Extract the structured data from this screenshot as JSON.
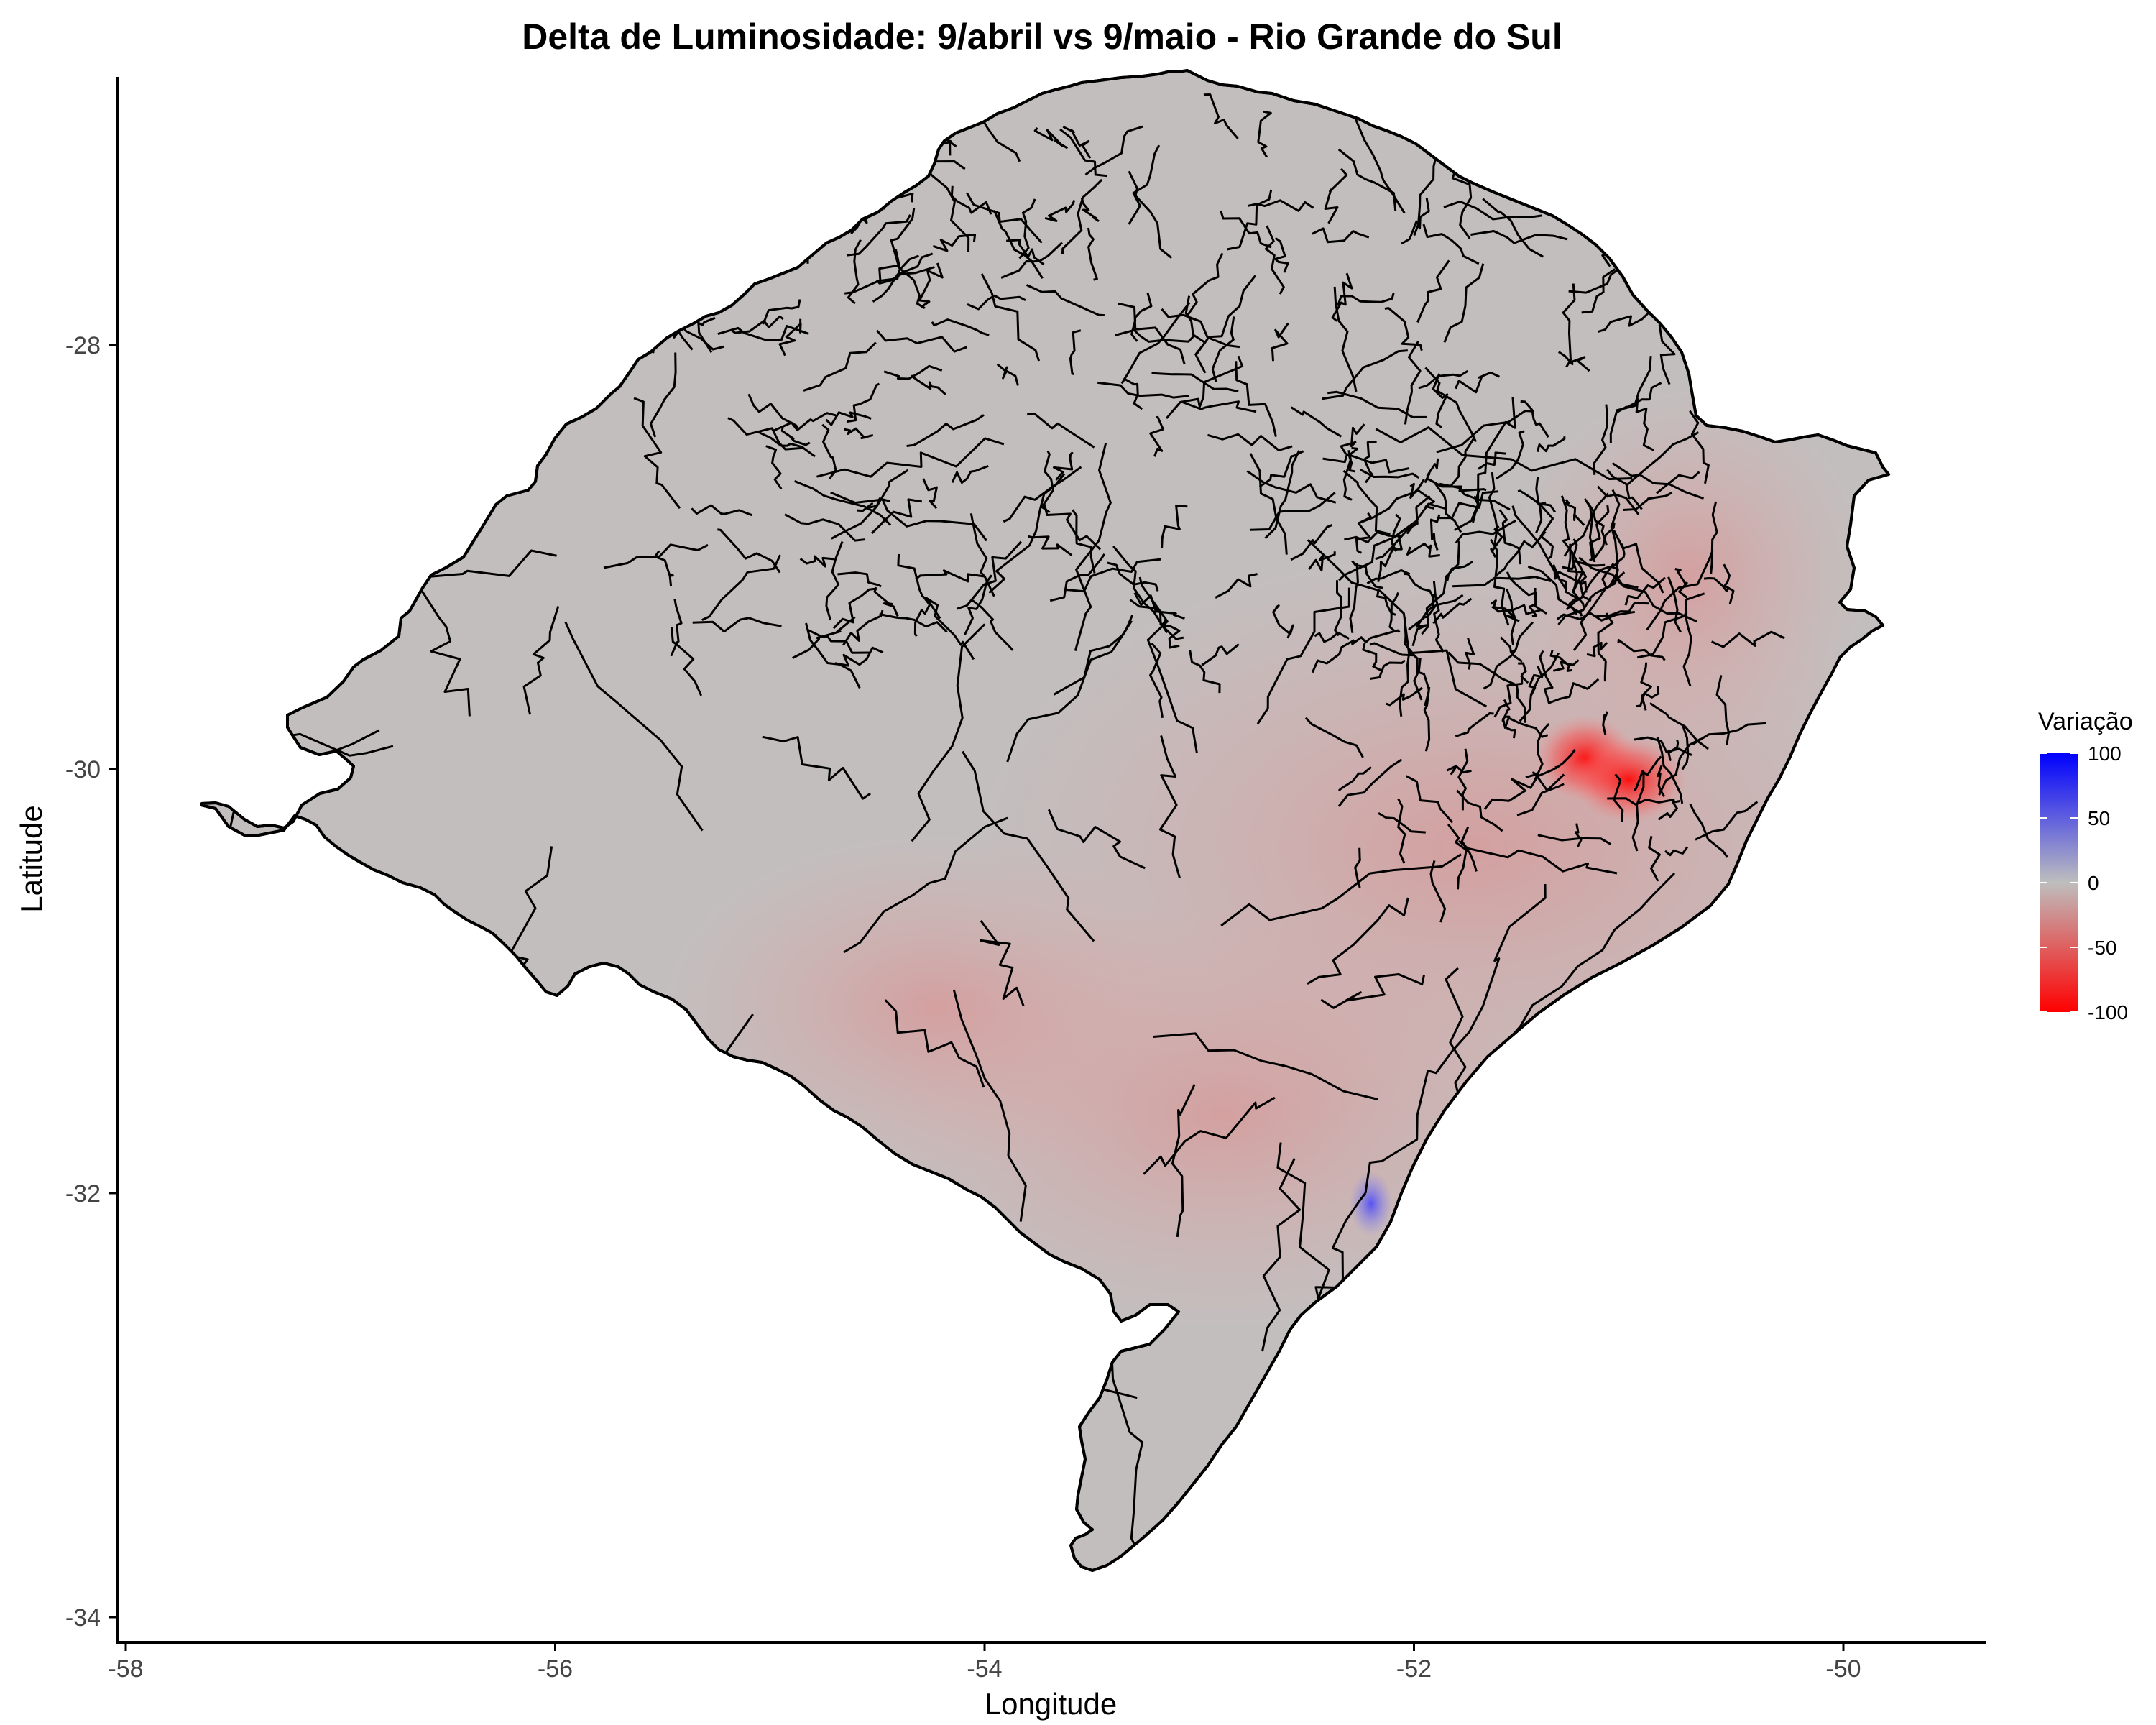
{
  "title": "Delta de Luminosidade: 9/abril vs 9/maio - Rio Grande do Sul",
  "xlabel": "Longitude",
  "ylabel": "Latitude",
  "x_ticks": [
    -58,
    -56,
    -54,
    -52,
    -50
  ],
  "y_ticks": [
    -28,
    -30,
    -32,
    -34
  ],
  "xlim": [
    -58.05,
    -49.3
  ],
  "ylim": [
    -34.1,
    -26.75
  ],
  "legend": {
    "title": "Variação",
    "ticks": [
      100,
      50,
      0,
      -50,
      -100
    ],
    "colors": {
      "high": "#0000ff",
      "mid": "#bebebe",
      "low": "#ff0000"
    },
    "range": [
      -100,
      100
    ]
  },
  "map": {
    "region": "Rio Grande do Sul",
    "fill_color": "#c3bebe",
    "border_color": "#000000",
    "hotspots": [
      {
        "lon": -51.2,
        "lat": -29.95,
        "value": -100
      },
      {
        "lon": -51.0,
        "lat": -30.05,
        "value": -60
      },
      {
        "lon": -52.2,
        "lat": -32.05,
        "value": 60
      }
    ]
  }
}
